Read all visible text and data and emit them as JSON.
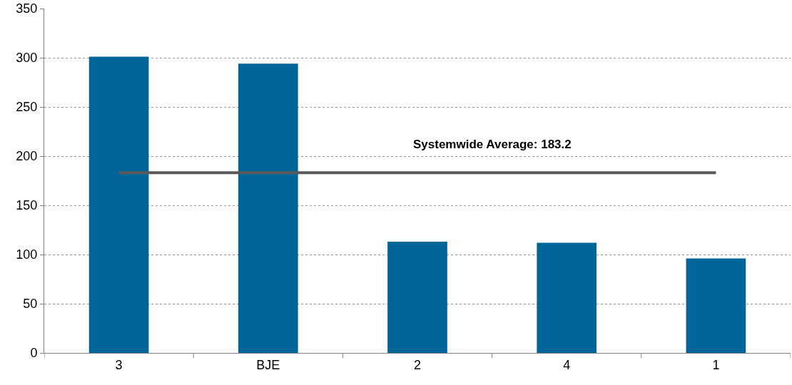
{
  "chart_data": {
    "type": "bar",
    "categories": [
      "3",
      "BJE",
      "2",
      "4",
      "1"
    ],
    "values": [
      301,
      294,
      113,
      112,
      96
    ],
    "color": "#006699",
    "ylim": [
      0,
      350
    ],
    "yticks": [
      0,
      50,
      100,
      150,
      200,
      250,
      300,
      350
    ],
    "grid": "y",
    "ref_lines": [
      {
        "axis": "y",
        "value": 183.2,
        "label": "Systemwide Average: 183.2",
        "color": "#595959",
        "line_style": "solid"
      }
    ]
  }
}
